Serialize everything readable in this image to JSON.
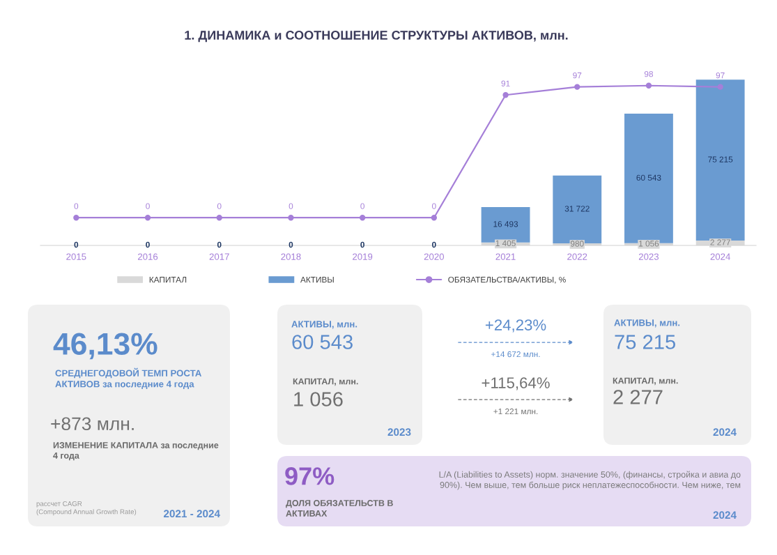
{
  "chart_data": [
    {
      "type": "bar",
      "title": "1. ДИНАМИКА и СООТНОШЕНИЕ СТРУКТУРЫ АКТИВОВ, млн.",
      "stacked": true,
      "categories": [
        "2015",
        "2016",
        "2017",
        "2018",
        "2019",
        "2020",
        "2021",
        "2022",
        "2023",
        "2024"
      ],
      "tick_labels": "x",
      "grid": false,
      "legend": "bottom",
      "series": [
        {
          "name": "КАПИТАЛ",
          "color": "#d9d9d9",
          "values": [
            0,
            0,
            0,
            0,
            0,
            0,
            1405,
            980,
            1056,
            2277
          ],
          "value_labels": [
            null,
            null,
            null,
            null,
            null,
            null,
            "1 405",
            "980",
            "1 056",
            "2 277"
          ]
        },
        {
          "name": "АКТИВЫ",
          "color": "#6a9bd1",
          "values": [
            0,
            0,
            0,
            0,
            0,
            0,
            16493,
            31722,
            60543,
            75215
          ],
          "value_labels": [
            "0",
            "0",
            "0",
            "0",
            "0",
            "0",
            "16 493",
            "31 722",
            "60 543",
            "75 215"
          ]
        },
        {
          "name": "ОБЯЗАТЕЛЬСТВА/АКТИВЫ, %",
          "type": "line",
          "axis": "y2",
          "color": "#a57fd8",
          "marker": "circle",
          "line_style": "solid",
          "values": [
            0,
            0,
            0,
            0,
            0,
            0,
            91,
            97,
            98,
            97
          ],
          "value_labels": [
            "0",
            "0",
            "0",
            "0",
            "0",
            "0",
            "91",
            "97",
            "98",
            "97"
          ]
        }
      ]
    },
    {
      "type": "other",
      "annotations": [
        "46,13%",
        "СРЕДНЕГОДОВОЙ ТЕМП РОСТА\nАКТИВОВ за последние 4 года",
        "+873 млн.",
        "ИЗМЕНЕНИЕ КАПИТАЛА за последние\n4 года",
        "рассчет CAGR\n(Compound Annual Growth Rate)",
        "2021 - 2024",
        "АКТИВЫ, млн.",
        "60 543",
        "КАПИТАЛ, млн.",
        "1 056",
        "2023",
        "+24,23%",
        "+14 672 млн.",
        "+115,64%",
        "+1 221 млн.",
        "АКТИВЫ, млн.",
        "75 215",
        "КАПИТАЛ, млн.",
        "2 277",
        "2024",
        "97%",
        "ДОЛЯ ОБЯЗАТЕЛЬСТВ В\nАКТИВАХ",
        "L/A (Liabilities to Assets) норм. значение 50%, (финансы, стройка и авиа до\n90%). Чем выше, тем больше риск неплатежеспособности. Чем ниже, тем",
        "2024"
      ]
    }
  ]
}
